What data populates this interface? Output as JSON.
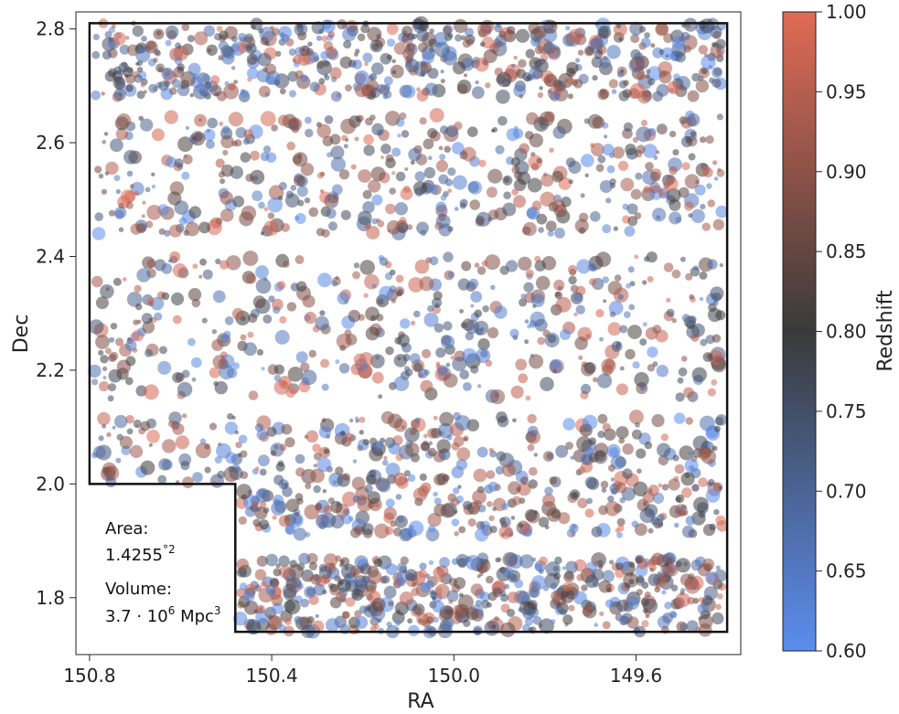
{
  "chart_data": {
    "type": "scatter",
    "xlabel": "RA",
    "ylabel": "Dec",
    "xlim": [
      150.83,
      149.37
    ],
    "ylim": [
      1.7,
      2.83
    ],
    "x_inverted": true,
    "xticks": [
      "150.8",
      "150.4",
      "150.0",
      "149.6"
    ],
    "yticks": [
      "1.8",
      "2.0",
      "2.2",
      "2.4",
      "2.6",
      "2.8"
    ],
    "grid": false,
    "colorbar": {
      "label": "Redshift",
      "min": 0.6,
      "max": 1.0,
      "ticks": [
        "0.60",
        "0.65",
        "0.70",
        "0.75",
        "0.80",
        "0.85",
        "0.90",
        "0.95",
        "1.00"
      ],
      "color_low": "#5b8def",
      "color_mid": "#3a3a3a",
      "color_high": "#e06a55"
    },
    "survey_boundary": {
      "vertices": [
        [
          150.8,
          2.81
        ],
        [
          149.4,
          2.81
        ],
        [
          149.4,
          1.74
        ],
        [
          150.48,
          1.74
        ],
        [
          150.48,
          2.0
        ],
        [
          150.8,
          2.0
        ]
      ]
    },
    "bands_dec": [
      [
        1.74,
        1.87
      ],
      [
        1.91,
        2.12
      ],
      [
        2.15,
        2.4
      ],
      [
        2.44,
        2.65
      ],
      [
        2.68,
        2.81
      ]
    ],
    "n_points": 2600,
    "annotations": {
      "area_label": "Area:",
      "area_value": "1.4255",
      "area_unit": "°2",
      "volume_label": "Volume:",
      "volume_value": "3.7 · 10",
      "volume_exp": "6",
      "volume_unit": " Mpc",
      "volume_unit_exp": "3"
    }
  }
}
